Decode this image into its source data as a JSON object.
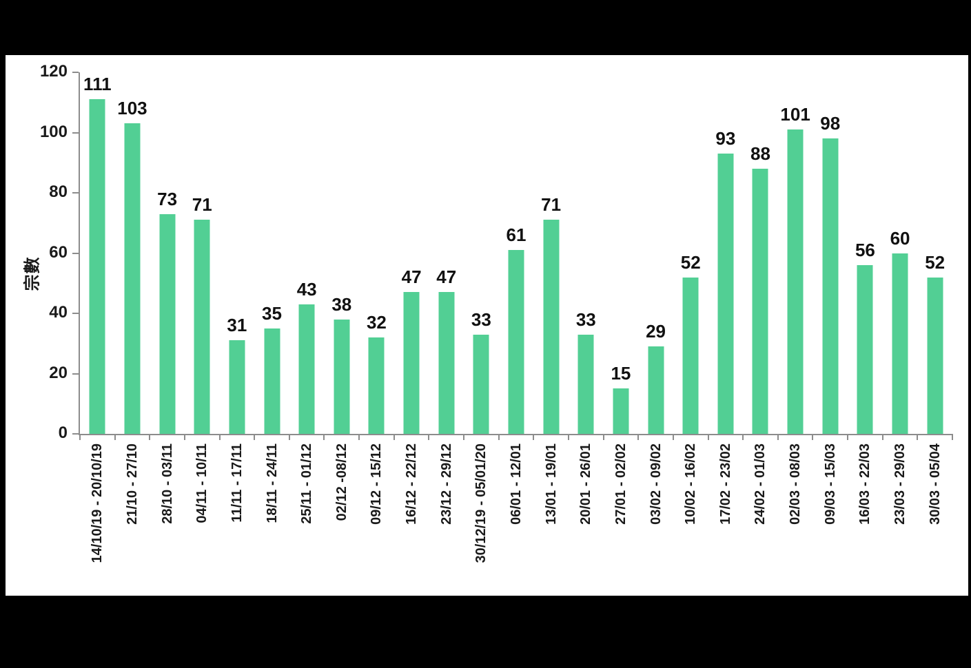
{
  "page": {
    "frame_color": "#000000",
    "panel_color": "#ffffff"
  },
  "chart_data": {
    "type": "bar",
    "title": "",
    "xlabel": "",
    "ylabel": "宗數",
    "ylim": [
      0,
      120
    ],
    "yticks": [
      0,
      20,
      40,
      60,
      80,
      100,
      120
    ],
    "grid": false,
    "legend": "none",
    "bar_color": "#52cf94",
    "axis_color": "#8c8c8c",
    "label_color": "#111111",
    "categories": [
      "14/10/19 - 20/10/19",
      "21/10 - 27/10",
      "28/10 - 03/11",
      "04/11 - 10/11",
      "11/11 - 17/11",
      "18/11 - 24/11",
      "25/11 - 01/12",
      "02/12 -08/12",
      "09/12 - 15/12",
      "16/12 - 22/12",
      "23/12 - 29/12",
      "30/12/19 - 05/01/20",
      "06/01 - 12/01",
      "13/01 - 19/01",
      "20/01 - 26/01",
      "27/01 - 02/02",
      "03/02 - 09/02",
      "10/02 - 16/02",
      "17/02 - 23/02",
      "24/02 - 01/03",
      "02/03 - 08/03",
      "09/03 - 15/03",
      "16/03 - 22/03",
      "23/03 - 29/03",
      "30/03 - 05/04"
    ],
    "values": [
      111,
      103,
      73,
      71,
      31,
      35,
      43,
      38,
      32,
      47,
      47,
      33,
      61,
      71,
      33,
      15,
      29,
      52,
      93,
      88,
      101,
      98,
      56,
      60,
      52
    ]
  }
}
